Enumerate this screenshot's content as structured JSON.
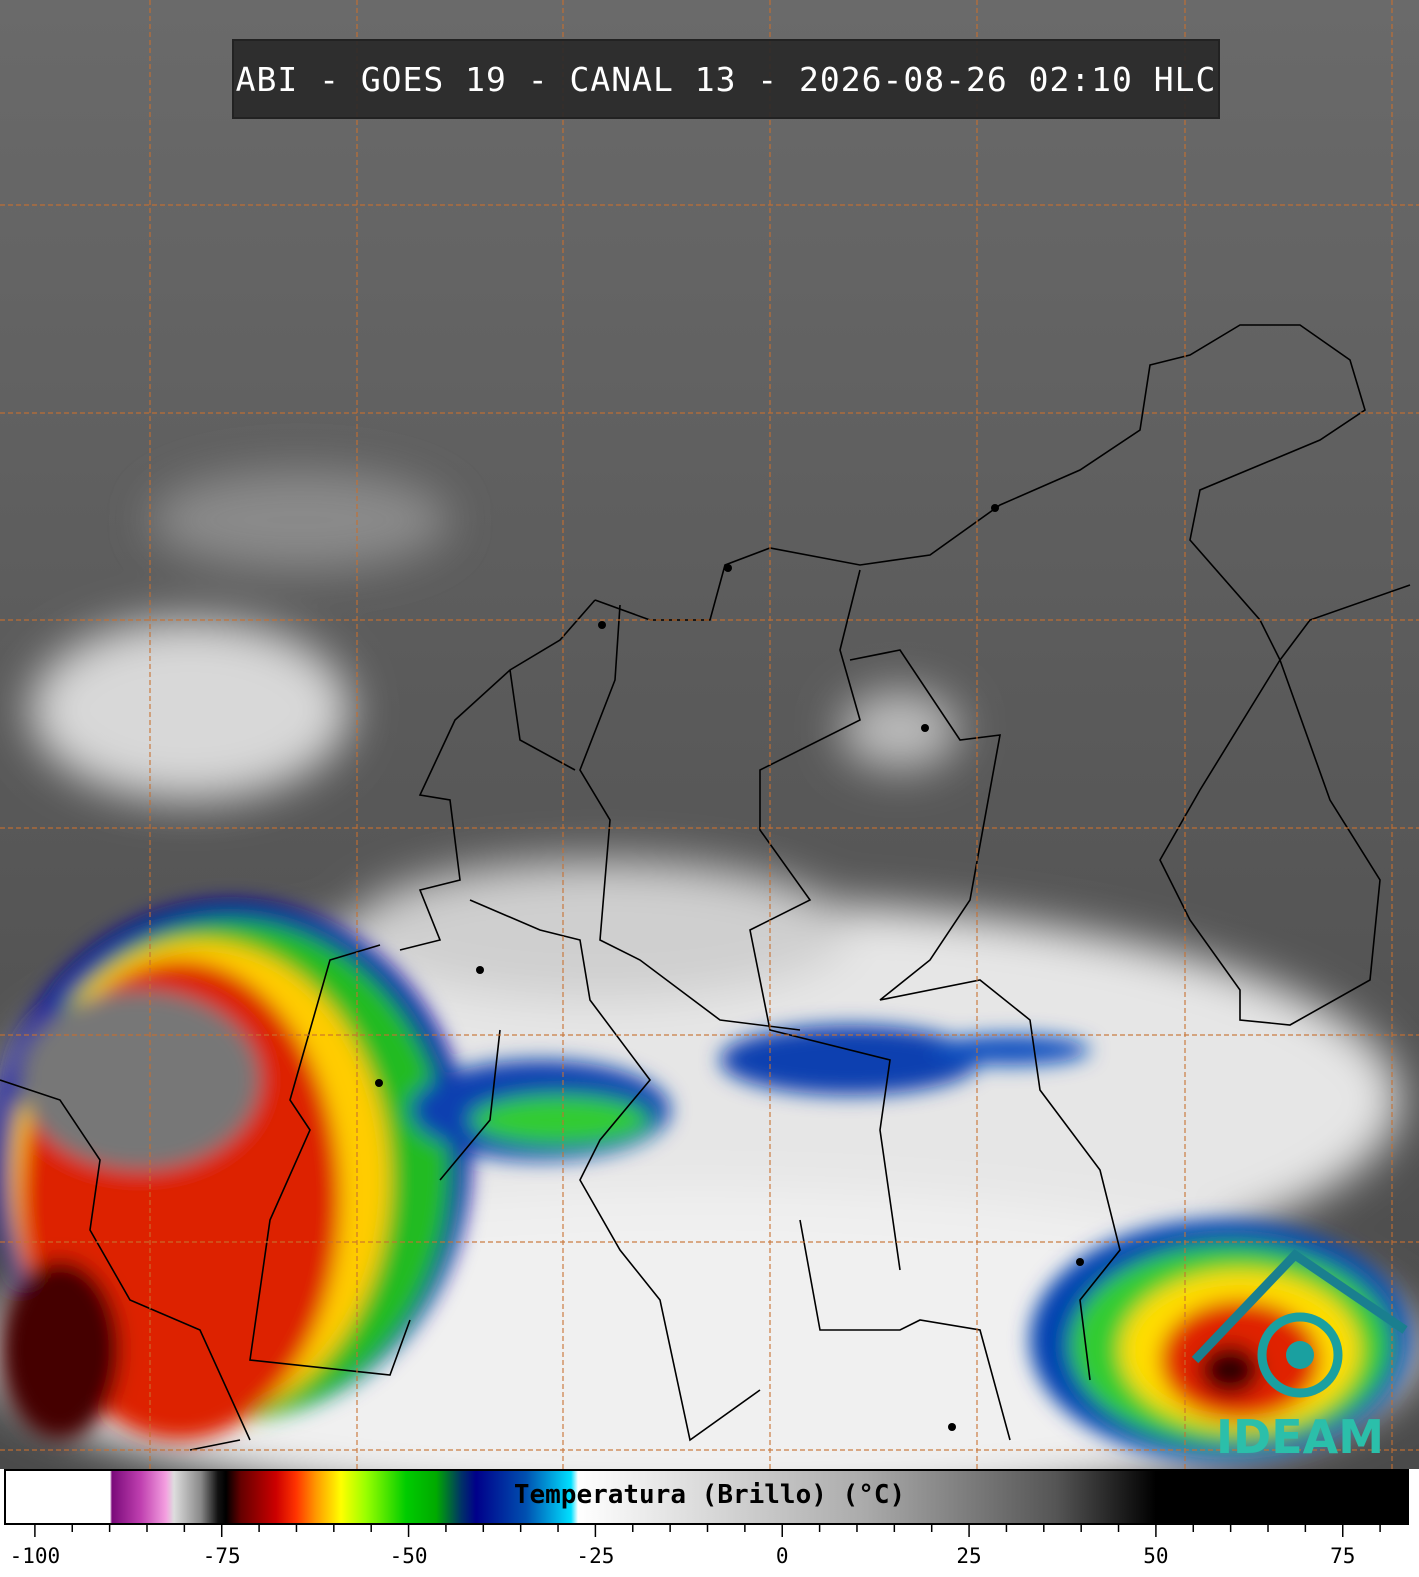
{
  "header": {
    "title": "ABI - GOES 19 - CANAL 13 - 2026-08-26 02:10 HLC"
  },
  "colorbar": {
    "label": "Temperatura (Brillo) (°C)",
    "xlim": [
      -104,
      84
    ],
    "ticks": [
      -100,
      -75,
      -50,
      -25,
      0,
      25,
      50,
      75
    ],
    "minor_ticks": [
      -95,
      -90,
      -85,
      -80,
      -70,
      -65,
      -60,
      -55,
      -45,
      -40,
      -35,
      -30,
      -20,
      -15,
      -10,
      -5,
      5,
      10,
      15,
      20,
      30,
      35,
      40,
      45,
      55,
      60,
      65,
      70,
      80
    ]
  },
  "logo": {
    "text": "IDEAM"
  }
}
